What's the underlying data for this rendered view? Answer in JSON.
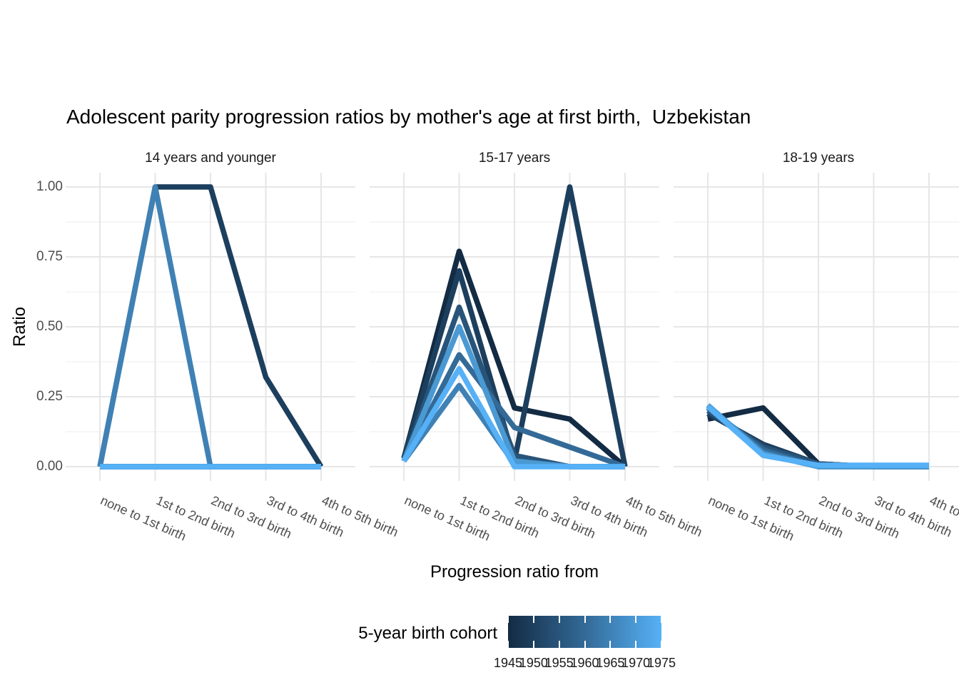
{
  "title": "Adolescent parity progression ratios by mother's age at first birth,  Uzbekistan",
  "axes": {
    "x_title": "Progression ratio from",
    "y_title": "Ratio",
    "y_ticks": [
      "0.00",
      "0.25",
      "0.50",
      "0.75",
      "1.00"
    ],
    "y_tick_values": [
      0,
      0.25,
      0.5,
      0.75,
      1.0
    ]
  },
  "legend": {
    "title": "5-year birth cohort",
    "ticks": [
      "1945",
      "1950",
      "1955",
      "1960",
      "1965",
      "1970",
      "1975"
    ],
    "gradient_low": "#132B43",
    "gradient_mid": "#336A97",
    "gradient_high": "#56B1F7"
  },
  "chart_data": {
    "type": "line",
    "title": "Adolescent parity progression ratios by mother's age at first birth,  Uzbekistan",
    "xlabel": "Progression ratio from",
    "ylabel": "Ratio",
    "ylim": [
      0,
      1
    ],
    "grid": "on",
    "legend_position": "bottom",
    "facets": [
      "14 years and younger",
      "15-17 years",
      "18-19 years"
    ],
    "categories": [
      "none to 1st birth",
      "1st to 2nd birth",
      "2nd to 3rd birth",
      "3rd to 4th birth",
      "4th to 5th birth"
    ],
    "series": [
      {
        "cohort": "1945",
        "color": "#132B43",
        "values": [
          [
            0,
            0,
            0,
            0,
            0
          ],
          [
            0.03,
            0.77,
            0.21,
            0.17,
            0.0
          ],
          [
            0.17,
            0.21,
            0.01,
            0.0,
            0.0
          ]
        ]
      },
      {
        "cohort": "1950",
        "color": "#1D3F5E",
        "values": [
          [
            0,
            1.0,
            1.0,
            0.32,
            0.0
          ],
          [
            0.03,
            0.7,
            0.02,
            1.0,
            0.0
          ],
          [
            0.19,
            0.08,
            0.01,
            0.0,
            0.0
          ]
        ]
      },
      {
        "cohort": "1955",
        "color": "#28547A",
        "values": [
          [
            0,
            0,
            0,
            0,
            0
          ],
          [
            0.02,
            0.57,
            0.04,
            0.0,
            0.0
          ],
          [
            0.2,
            0.07,
            0.01,
            0.0,
            0.0
          ]
        ]
      },
      {
        "cohort": "1960",
        "color": "#336A97",
        "values": [
          [
            0,
            0,
            0,
            0,
            0
          ],
          [
            0.02,
            0.4,
            0.14,
            0.07,
            0.0
          ],
          [
            0.21,
            0.06,
            0.0,
            0.0,
            0.0
          ]
        ]
      },
      {
        "cohort": "1965",
        "color": "#3F81B5",
        "values": [
          [
            0,
            1.0,
            0,
            0,
            0
          ],
          [
            0.02,
            0.29,
            0.01,
            0.0,
            0.0
          ],
          [
            0.215,
            0.05,
            0.0,
            0.0,
            0.0
          ]
        ]
      },
      {
        "cohort": "1970",
        "color": "#4A99D3",
        "values": [
          [
            0,
            0,
            0,
            0,
            0
          ],
          [
            0.02,
            0.5,
            0.02,
            0.0,
            0.0
          ],
          [
            0.22,
            0.045,
            0.0,
            0.0,
            0.0
          ]
        ]
      },
      {
        "cohort": "1975",
        "color": "#56B1F7",
        "values": [
          [
            0,
            0,
            0,
            0,
            0
          ],
          [
            0.02,
            0.35,
            0.0,
            0.0,
            0.0
          ],
          [
            0.215,
            0.04,
            0.005,
            0.005,
            0.005
          ]
        ]
      }
    ]
  }
}
